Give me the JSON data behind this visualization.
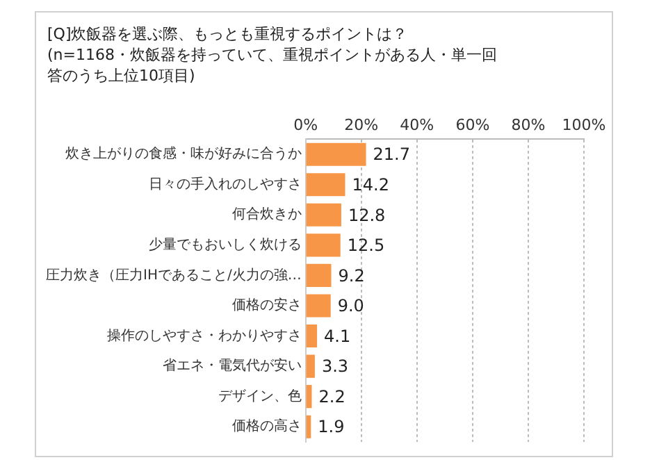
{
  "chart_data": {
    "type": "bar",
    "orientation": "horizontal",
    "title": "[Q]炊飯器を選ぶ際、もっとも重視するポイントは？",
    "subtitle": "(n=1168・炊飯器を持っていて、重視ポイントがある人・単一回答のうち上位10項目)",
    "categories": [
      "炊き上がりの食感・味が好みに合うか",
      "日々の手入れのしやすさ",
      "何合炊きか",
      "少量でもおいしく炊ける",
      "圧力炊き（圧力IHであること/火力の強…",
      "価格の安さ",
      "操作のしやすさ・わかりやすさ",
      "省エネ・電気代が安い",
      "デザイン、色",
      "価格の高さ"
    ],
    "values": [
      21.7,
      14.2,
      12.8,
      12.5,
      9.2,
      9.0,
      4.1,
      3.3,
      2.2,
      1.9
    ],
    "value_labels": [
      "21.7",
      "14.2",
      "12.8",
      "12.5",
      "9.2",
      "9.0",
      "4.1",
      "3.3",
      "2.2",
      "1.9"
    ],
    "color": "#f79646",
    "xlim": [
      0,
      100
    ],
    "xticks": [
      {
        "value": 0,
        "label": "0%"
      },
      {
        "value": 20,
        "label": "20%"
      },
      {
        "value": 40,
        "label": "40%"
      },
      {
        "value": 60,
        "label": "60%"
      },
      {
        "value": 80,
        "label": "80%"
      },
      {
        "value": 100,
        "label": "100%"
      }
    ],
    "grid": "x"
  }
}
